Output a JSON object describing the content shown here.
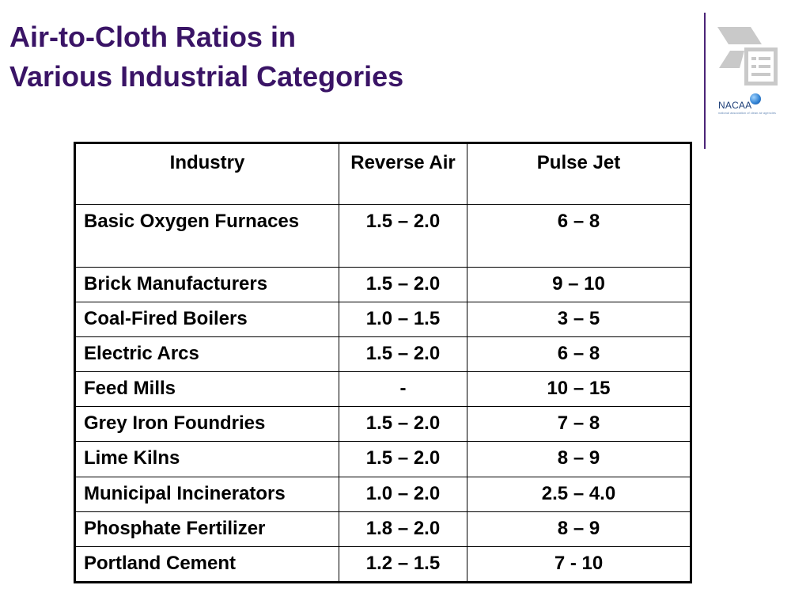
{
  "title": {
    "line1": "Air-to-Cloth Ratios in",
    "line2": "Various Industrial Categories"
  },
  "logo": {
    "name": "NACAA",
    "tagline": "national association of clean air agencies",
    "icon": "document-icon"
  },
  "table": {
    "headers": [
      "Industry",
      "Reverse Air",
      "Pulse Jet"
    ],
    "rows": [
      {
        "industry": "Basic Oxygen Furnaces",
        "reverse_air": "1.5 – 2.0",
        "pulse_jet": "6 – 8"
      },
      {
        "industry": "Brick Manufacturers",
        "reverse_air": "1.5 – 2.0",
        "pulse_jet": "9 – 10"
      },
      {
        "industry": "Coal-Fired Boilers",
        "reverse_air": "1.0 – 1.5",
        "pulse_jet": "3 – 5"
      },
      {
        "industry": "Electric Arcs",
        "reverse_air": "1.5 – 2.0",
        "pulse_jet": "6 – 8"
      },
      {
        "industry": "Feed Mills",
        "reverse_air": "-",
        "pulse_jet": "10 – 15"
      },
      {
        "industry": "Grey Iron Foundries",
        "reverse_air": "1.5 – 2.0",
        "pulse_jet": "7 – 8"
      },
      {
        "industry": "Lime Kilns",
        "reverse_air": "1.5 – 2.0",
        "pulse_jet": "8 – 9"
      },
      {
        "industry": "Municipal Incinerators",
        "reverse_air": "1.0 – 2.0",
        "pulse_jet": "2.5 – 4.0"
      },
      {
        "industry": "Phosphate Fertilizer",
        "reverse_air": "1.8 – 2.0",
        "pulse_jet": "8 – 9"
      },
      {
        "industry": "Portland Cement",
        "reverse_air": "1.2 – 1.5",
        "pulse_jet": "7 - 10"
      }
    ]
  },
  "colors": {
    "title": "#3a1466",
    "divider": "#4b2478",
    "logo_text": "#1e3f78"
  }
}
